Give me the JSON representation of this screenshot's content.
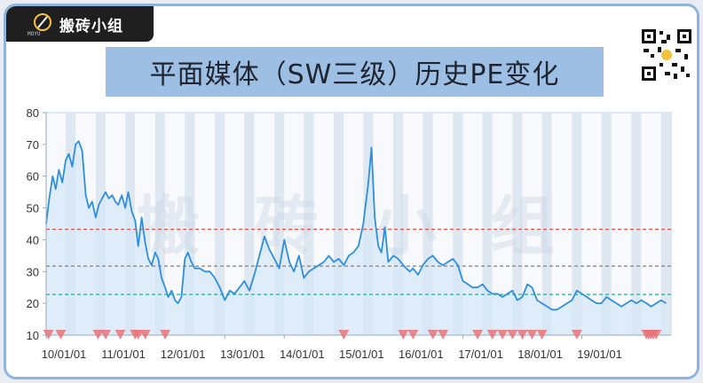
{
  "brand": {
    "name": "搬砖小组",
    "sub": "MOYU"
  },
  "title": "平面媒体（SW三级）历史PE变化",
  "watermark": "搬 砖 小 组",
  "colors": {
    "line": "#2f8fdc",
    "area": "#d6e8f8",
    "band": "#dfe7f1",
    "refHigh": "#d9534f",
    "refMid": "#8a8a8a",
    "refLow": "#1fae9b",
    "marker": "#e8737a"
  },
  "chart_data": {
    "type": "line",
    "title": "",
    "xlabel": "",
    "ylabel": "",
    "ylim": [
      10,
      80
    ],
    "yticks": [
      10,
      20,
      30,
      40,
      50,
      60,
      70,
      80
    ],
    "xlim": [
      "2010-01-01",
      "2020-07-01"
    ],
    "xtick_labels": [
      "10/01/01",
      "11/01/01",
      "12/01/01",
      "13/01/01",
      "14/01/01",
      "15/01/01",
      "16/01/01",
      "17/01/01",
      "18/01/01",
      "19/01/01"
    ],
    "grid": false,
    "reference_lines": [
      {
        "level": "high",
        "value": 43.3,
        "color": "#d9534f",
        "style": "dashed"
      },
      {
        "level": "median",
        "value": 31.7,
        "color": "#8a8a8a",
        "style": "dashed"
      },
      {
        "level": "low",
        "value": 22.8,
        "color": "#1fae9b",
        "style": "dashed"
      }
    ],
    "series": [
      {
        "x": [
          "2010-01-01",
          "2010-01-20",
          "2010-02-10",
          "2010-03-01",
          "2010-03-20",
          "2010-04-10",
          "2010-05-01",
          "2010-05-20",
          "2010-06-10",
          "2010-07-01",
          "2010-07-20",
          "2010-08-10",
          "2010-09-01",
          "2010-09-20",
          "2010-10-10",
          "2010-11-01",
          "2010-11-20",
          "2010-12-10",
          "2011-01-01",
          "2011-01-20",
          "2011-02-10",
          "2011-03-01",
          "2011-03-20",
          "2011-04-10",
          "2011-05-01",
          "2011-05-20",
          "2011-06-10",
          "2011-07-01",
          "2011-07-20",
          "2011-08-10",
          "2011-09-01",
          "2011-09-20",
          "2011-10-10",
          "2011-11-01",
          "2011-11-20",
          "2011-12-10",
          "2012-01-01",
          "2012-01-20",
          "2012-02-10",
          "2012-03-01",
          "2012-03-20",
          "2012-04-10",
          "2012-05-01",
          "2012-05-20",
          "2012-06-10",
          "2012-07-01",
          "2012-08-01",
          "2012-09-01",
          "2012-10-01",
          "2012-11-01",
          "2012-12-01",
          "2013-01-01",
          "2013-02-01",
          "2013-03-01",
          "2013-04-01",
          "2013-05-01",
          "2013-06-01",
          "2013-07-01",
          "2013-08-01",
          "2013-09-01",
          "2013-10-01",
          "2013-11-01",
          "2013-12-01",
          "2014-01-01",
          "2014-02-01",
          "2014-03-01",
          "2014-04-01",
          "2014-05-01",
          "2014-06-01",
          "2014-07-01",
          "2014-08-01",
          "2014-09-01",
          "2014-10-01",
          "2014-11-01",
          "2014-12-01",
          "2015-01-01",
          "2015-02-01",
          "2015-03-01",
          "2015-04-01",
          "2015-05-01",
          "2015-06-01",
          "2015-06-20",
          "2015-07-10",
          "2015-08-01",
          "2015-08-20",
          "2015-09-10",
          "2015-10-01",
          "2015-11-01",
          "2015-12-01",
          "2016-01-01",
          "2016-01-20",
          "2016-02-10",
          "2016-03-01",
          "2016-04-01",
          "2016-05-01",
          "2016-06-01",
          "2016-07-01",
          "2016-08-01",
          "2016-09-01",
          "2016-10-01",
          "2016-11-01",
          "2016-12-01",
          "2017-01-01",
          "2017-02-01",
          "2017-03-01",
          "2017-04-01",
          "2017-05-01",
          "2017-06-01",
          "2017-07-01",
          "2017-08-01",
          "2017-09-01",
          "2017-10-01",
          "2017-11-01",
          "2017-12-01",
          "2018-01-01",
          "2018-02-01",
          "2018-03-01",
          "2018-04-01",
          "2018-05-01",
          "2018-06-01",
          "2018-07-01",
          "2018-08-01",
          "2018-09-01",
          "2018-10-01",
          "2018-11-01",
          "2018-12-01",
          "2019-01-01",
          "2019-02-01",
          "2019-03-01",
          "2019-04-01",
          "2019-05-01",
          "2019-06-01",
          "2019-07-01",
          "2019-08-01",
          "2019-09-01",
          "2019-10-01",
          "2019-11-01",
          "2019-12-01",
          "2020-01-01",
          "2020-02-01",
          "2020-03-01",
          "2020-04-01",
          "2020-05-01",
          "2020-06-01"
        ],
        "values": [
          45,
          53,
          60,
          56,
          62,
          58,
          65,
          67,
          63,
          70,
          71,
          68,
          54,
          50,
          52,
          47,
          51,
          53,
          55,
          53,
          54,
          52,
          51,
          54,
          50,
          55,
          49,
          46,
          38,
          47,
          39,
          34,
          32,
          36,
          34,
          28,
          25,
          22,
          24,
          21,
          20,
          22,
          34,
          36,
          33,
          31,
          31,
          30,
          30,
          28,
          25,
          21,
          24,
          23,
          25,
          27,
          24,
          29,
          35,
          41,
          37,
          34,
          31,
          40,
          33,
          30,
          35,
          28,
          30,
          31,
          32,
          33,
          35,
          33,
          34,
          32,
          35,
          36,
          38,
          45,
          58,
          69,
          47,
          38,
          36,
          44,
          33,
          35,
          34,
          32,
          31,
          30,
          31,
          29,
          32,
          34,
          35,
          33,
          32,
          33,
          34,
          32,
          27,
          26,
          25,
          25,
          26,
          24,
          23,
          23,
          22,
          23,
          24,
          21,
          22,
          26,
          25,
          21,
          20,
          19,
          18,
          18,
          19,
          20,
          21,
          24,
          23,
          22,
          21,
          20,
          20,
          22,
          21,
          20,
          19,
          20,
          21,
          20,
          21,
          20,
          19,
          20,
          21,
          20
        ]
      }
    ],
    "markers_y": 10,
    "marker_x": [
      "2010-01-15",
      "2010-04-01",
      "2010-11-15",
      "2011-01-01",
      "2011-04-01",
      "2011-07-01",
      "2011-07-20",
      "2011-09-01",
      "2012-01-01",
      "2015-01-01",
      "2016-01-01",
      "2016-03-01",
      "2016-07-01",
      "2016-09-01",
      "2017-04-01",
      "2017-07-01",
      "2017-09-01",
      "2017-11-01",
      "2018-01-01",
      "2018-03-01",
      "2018-05-01",
      "2018-12-01",
      "2020-02-01",
      "2020-02-15",
      "2020-03-01",
      "2020-03-15",
      "2020-04-01"
    ]
  }
}
